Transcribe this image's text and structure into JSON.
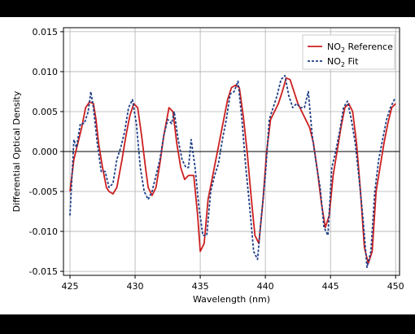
{
  "chart_data": {
    "type": "line",
    "title": "",
    "xlabel": "Wavelength (nm)",
    "ylabel": "Differential Optical Density",
    "xlim": [
      424.5,
      450.3
    ],
    "ylim": [
      -0.0155,
      0.0155
    ],
    "xticks": [
      425,
      430,
      435,
      440,
      445,
      450
    ],
    "xtick_labels": [
      "425",
      "430",
      "435",
      "440",
      "445",
      "450"
    ],
    "yticks": [
      -0.015,
      -0.01,
      -0.005,
      0.0,
      0.005,
      0.01,
      0.015
    ],
    "ytick_labels": [
      "-0.015",
      "-0.010",
      "-0.005",
      "0.000",
      "0.005",
      "0.010",
      "0.015"
    ],
    "grid": true,
    "zero_line": true,
    "legend_position": "top-right",
    "series": [
      {
        "name": "NO2 Reference",
        "legend_label": {
          "pre": "NO",
          "sub": "2",
          "post": " Reference"
        },
        "color": "#cc1f1f",
        "style": "solid",
        "x": [
          425.0,
          425.3,
          425.6,
          425.9,
          426.2,
          426.5,
          426.8,
          427.0,
          427.2,
          427.5,
          427.8,
          428.0,
          428.3,
          428.6,
          429.0,
          429.3,
          429.6,
          429.9,
          430.2,
          430.5,
          430.8,
          431.0,
          431.3,
          431.6,
          431.9,
          432.2,
          432.6,
          432.9,
          433.2,
          433.5,
          433.8,
          434.1,
          434.5,
          434.8,
          435.0,
          435.3,
          435.6,
          435.9,
          436.2,
          436.5,
          436.8,
          437.1,
          437.4,
          437.7,
          438.0,
          438.3,
          438.6,
          438.9,
          439.2,
          439.5,
          439.8,
          440.1,
          440.4,
          440.7,
          441.0,
          441.3,
          441.6,
          441.9,
          442.2,
          442.5,
          442.8,
          443.1,
          443.4,
          443.7,
          444.0,
          444.3,
          444.6,
          444.9,
          445.2,
          445.5,
          445.8,
          446.1,
          446.4,
          446.7,
          447.0,
          447.3,
          447.6,
          447.9,
          448.2,
          448.5,
          448.8,
          449.1,
          449.4,
          449.7,
          450.0
        ],
        "y": [
          -0.005,
          -0.001,
          0.001,
          0.003,
          0.0055,
          0.0062,
          0.006,
          0.004,
          0.001,
          -0.002,
          -0.0045,
          -0.005,
          -0.0053,
          -0.0045,
          -0.001,
          0.002,
          0.0045,
          0.006,
          0.0055,
          0.002,
          -0.002,
          -0.0045,
          -0.0055,
          -0.0045,
          -0.0015,
          0.002,
          0.0055,
          0.005,
          0.001,
          -0.002,
          -0.0035,
          -0.003,
          -0.003,
          -0.008,
          -0.0125,
          -0.0115,
          -0.006,
          -0.0035,
          -0.001,
          0.0015,
          0.004,
          0.0065,
          0.008,
          0.0083,
          0.008,
          0.0045,
          0.0,
          -0.0055,
          -0.0105,
          -0.0115,
          -0.0065,
          0.0,
          0.004,
          0.005,
          0.006,
          0.0075,
          0.0092,
          0.009,
          0.0075,
          0.006,
          0.005,
          0.004,
          0.003,
          0.001,
          -0.0025,
          -0.0065,
          -0.0095,
          -0.008,
          -0.003,
          0.0,
          0.003,
          0.0055,
          0.006,
          0.005,
          0.001,
          -0.005,
          -0.012,
          -0.014,
          -0.0125,
          -0.005,
          -0.002,
          0.001,
          0.0035,
          0.0055,
          0.006
        ]
      },
      {
        "name": "NO2 Fit",
        "legend_label": {
          "pre": "NO",
          "sub": "2",
          "post": " Fit"
        },
        "color": "#1f3f86",
        "style": "dashed",
        "x": [
          425.0,
          425.3,
          425.5,
          425.8,
          426.1,
          426.4,
          426.6,
          426.8,
          427.1,
          427.4,
          427.7,
          428.0,
          428.3,
          428.6,
          428.9,
          429.2,
          429.5,
          429.8,
          430.1,
          430.4,
          430.7,
          431.0,
          431.3,
          431.6,
          431.9,
          432.2,
          432.5,
          432.8,
          433.0,
          433.3,
          433.6,
          433.9,
          434.1,
          434.3,
          434.6,
          434.9,
          435.2,
          435.5,
          435.8,
          436.1,
          436.4,
          436.7,
          437.0,
          437.3,
          437.6,
          437.9,
          438.2,
          438.5,
          438.8,
          439.1,
          439.4,
          439.7,
          440.0,
          440.3,
          440.6,
          440.9,
          441.2,
          441.5,
          441.8,
          442.1,
          442.4,
          442.7,
          443.0,
          443.3,
          443.6,
          443.9,
          444.2,
          444.5,
          444.8,
          445.1,
          445.4,
          445.7,
          446.0,
          446.3,
          446.6,
          446.9,
          447.2,
          447.5,
          447.8,
          448.1,
          448.4,
          448.7,
          449.0,
          449.3,
          449.6,
          449.9,
          450.0
        ],
        "y": [
          -0.008,
          0.0015,
          0.0005,
          0.0035,
          0.0035,
          0.005,
          0.0075,
          0.0055,
          0.001,
          -0.0025,
          -0.0025,
          -0.0045,
          -0.004,
          -0.001,
          0.0005,
          0.0025,
          0.0055,
          0.0065,
          0.0035,
          -0.002,
          -0.005,
          -0.006,
          -0.005,
          -0.003,
          -0.001,
          0.002,
          0.004,
          0.0035,
          0.005,
          0.0015,
          -0.001,
          -0.002,
          -0.002,
          0.0015,
          -0.002,
          -0.007,
          -0.0105,
          -0.0105,
          -0.005,
          -0.003,
          -0.0015,
          0.0015,
          0.004,
          0.0072,
          0.0075,
          0.0088,
          0.004,
          -0.002,
          -0.007,
          -0.0125,
          -0.0135,
          -0.008,
          -0.003,
          0.004,
          0.0055,
          0.007,
          0.009,
          0.0095,
          0.007,
          0.0055,
          0.006,
          0.0055,
          0.0055,
          0.0075,
          0.002,
          -0.0015,
          -0.0045,
          -0.0095,
          -0.0105,
          -0.002,
          0.0,
          0.0025,
          0.0055,
          0.0063,
          0.004,
          0.001,
          -0.0035,
          -0.0085,
          -0.0145,
          -0.0125,
          -0.005,
          -0.001,
          0.0015,
          0.004,
          0.0055,
          0.0065,
          0.0065
        ]
      }
    ]
  }
}
